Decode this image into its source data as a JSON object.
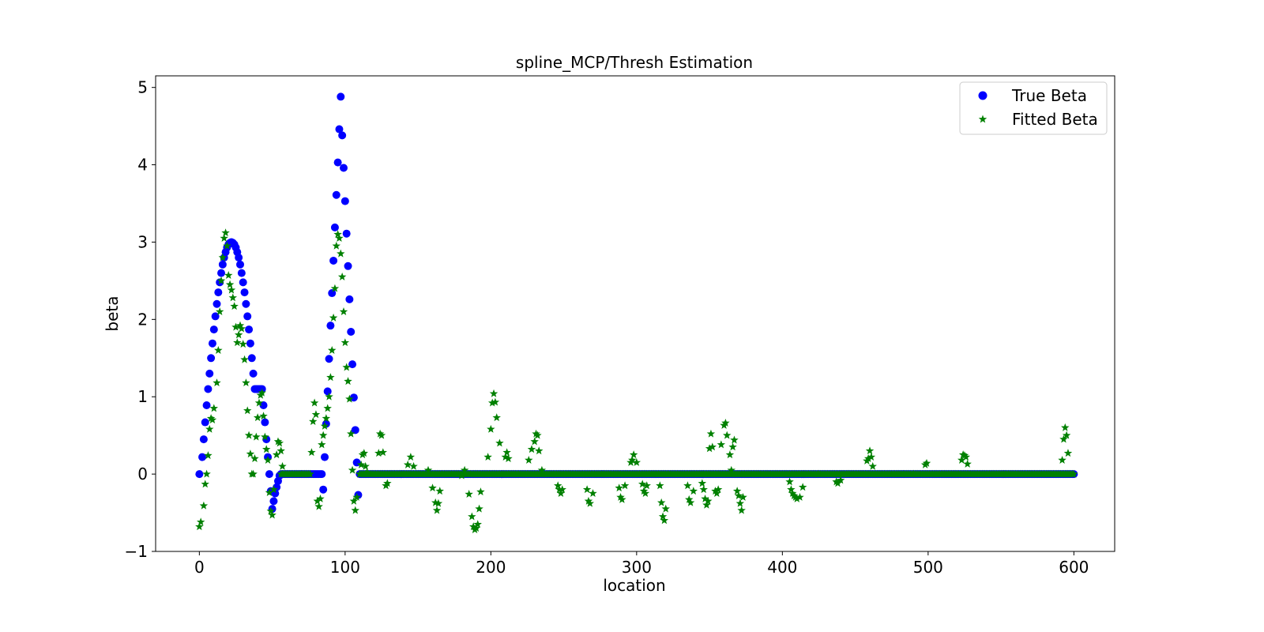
{
  "chart_data": {
    "type": "scatter",
    "title": "spline_MCP/Thresh Estimation",
    "xlabel": "location",
    "ylabel": "beta",
    "xlim": [
      -30,
      628
    ],
    "ylim": [
      -1,
      5.15
    ],
    "xticks": [
      0,
      100,
      200,
      300,
      400,
      500,
      600
    ],
    "yticks": [
      -1,
      0,
      1,
      2,
      3,
      4,
      5
    ],
    "ytick_labels": [
      "−1",
      "0",
      "1",
      "2",
      "3",
      "4",
      "5"
    ],
    "grid": false,
    "legend_position": "top-right",
    "series": [
      {
        "name": "True Beta",
        "marker": "circle",
        "color": "#0000ff",
        "nonzero_points": [
          [
            0,
            0
          ],
          [
            2,
            0.22
          ],
          [
            3,
            0.45
          ],
          [
            4,
            0.67
          ],
          [
            5,
            0.89
          ],
          [
            6,
            1.1
          ],
          [
            7,
            1.3
          ],
          [
            8,
            1.5
          ],
          [
            9,
            1.69
          ],
          [
            10,
            1.87
          ],
          [
            11,
            2.04
          ],
          [
            12,
            2.2
          ],
          [
            13,
            2.35
          ],
          [
            14,
            2.48
          ],
          [
            15,
            2.6
          ],
          [
            16,
            2.71
          ],
          [
            17,
            2.8
          ],
          [
            18,
            2.87
          ],
          [
            19,
            2.93
          ],
          [
            20,
            2.97
          ],
          [
            21,
            2.99
          ],
          [
            22,
            3.0
          ],
          [
            23,
            2.99
          ],
          [
            24,
            2.97
          ],
          [
            25,
            2.93
          ],
          [
            26,
            2.87
          ],
          [
            27,
            2.8
          ],
          [
            28,
            2.71
          ],
          [
            29,
            2.6
          ],
          [
            30,
            2.48
          ],
          [
            31,
            2.35
          ],
          [
            32,
            2.2
          ],
          [
            33,
            2.04
          ],
          [
            34,
            1.87
          ],
          [
            35,
            1.69
          ],
          [
            36,
            1.5
          ],
          [
            37,
            1.3
          ],
          [
            38,
            1.1
          ],
          [
            39,
            1.1
          ],
          [
            40,
            1.1
          ],
          [
            41,
            1.1
          ],
          [
            42,
            1.1
          ],
          [
            43,
            1.1
          ],
          [
            44,
            0.89
          ],
          [
            45,
            0.67
          ],
          [
            46,
            0.45
          ],
          [
            47,
            0.22
          ],
          [
            48,
            0
          ],
          [
            49,
            -0.22
          ],
          [
            50,
            -0.45
          ],
          [
            51,
            -0.35
          ],
          [
            52,
            -0.25
          ],
          [
            53,
            -0.17
          ],
          [
            54,
            -0.09
          ],
          [
            55,
            -0.02
          ],
          [
            85,
            -0.2
          ],
          [
            86,
            0.22
          ],
          [
            87,
            0.65
          ],
          [
            88,
            1.07
          ],
          [
            89,
            1.49
          ],
          [
            90,
            1.92
          ],
          [
            91,
            2.34
          ],
          [
            92,
            2.76
          ],
          [
            93,
            3.19
          ],
          [
            94,
            3.61
          ],
          [
            95,
            4.03
          ],
          [
            96,
            4.46
          ],
          [
            97,
            4.88
          ],
          [
            98,
            4.38
          ],
          [
            99,
            3.96
          ],
          [
            100,
            3.53
          ],
          [
            101,
            3.11
          ],
          [
            102,
            2.69
          ],
          [
            103,
            2.26
          ],
          [
            104,
            1.84
          ],
          [
            105,
            1.42
          ],
          [
            106,
            0.99
          ],
          [
            107,
            0.57
          ],
          [
            108,
            0.15
          ],
          [
            109,
            -0.27
          ]
        ],
        "zero_ranges": [
          [
            56,
            84
          ],
          [
            110,
            600
          ]
        ]
      },
      {
        "name": "Fitted Beta",
        "marker": "star",
        "color": "#008000",
        "nonzero_points": [
          [
            0,
            -0.68
          ],
          [
            1,
            -0.62
          ],
          [
            3,
            -0.41
          ],
          [
            4,
            -0.13
          ],
          [
            5,
            0.0
          ],
          [
            6,
            0.24
          ],
          [
            7,
            0.58
          ],
          [
            8,
            0.72
          ],
          [
            9,
            0.7
          ],
          [
            10,
            0.85
          ],
          [
            12,
            1.18
          ],
          [
            13,
            1.6
          ],
          [
            14,
            2.1
          ],
          [
            15,
            2.5
          ],
          [
            16,
            2.8
          ],
          [
            17,
            3.05
          ],
          [
            18,
            3.12
          ],
          [
            19,
            2.95
          ],
          [
            20,
            2.57
          ],
          [
            21,
            2.45
          ],
          [
            22,
            2.38
          ],
          [
            23,
            2.28
          ],
          [
            24,
            2.17
          ],
          [
            25,
            1.9
          ],
          [
            26,
            1.7
          ],
          [
            27,
            1.8
          ],
          [
            28,
            1.92
          ],
          [
            29,
            1.88
          ],
          [
            30,
            1.68
          ],
          [
            31,
            1.48
          ],
          [
            32,
            1.18
          ],
          [
            33,
            0.82
          ],
          [
            34,
            0.5
          ],
          [
            35,
            0.26
          ],
          [
            36,
            0.0
          ],
          [
            37,
            0.0
          ],
          [
            38,
            0.2
          ],
          [
            39,
            0.48
          ],
          [
            40,
            0.73
          ],
          [
            41,
            0.92
          ],
          [
            42,
            1.02
          ],
          [
            43,
            1.05
          ],
          [
            44,
            0.75
          ],
          [
            45,
            0.48
          ],
          [
            46,
            0.32
          ],
          [
            47,
            0.18
          ],
          [
            48,
            -0.24
          ],
          [
            49,
            -0.48
          ],
          [
            50,
            -0.53
          ],
          [
            51,
            -0.2
          ],
          [
            53,
            0.25
          ],
          [
            54,
            0.42
          ],
          [
            55,
            0.4
          ],
          [
            56,
            0.3
          ],
          [
            57,
            0.1
          ],
          [
            77,
            0.28
          ],
          [
            78,
            0.68
          ],
          [
            79,
            0.92
          ],
          [
            80,
            0.77
          ],
          [
            81,
            -0.35
          ],
          [
            82,
            -0.42
          ],
          [
            83,
            -0.32
          ],
          [
            84,
            0.38
          ],
          [
            85,
            0.5
          ],
          [
            86,
            0.62
          ],
          [
            87,
            0.72
          ],
          [
            88,
            0.85
          ],
          [
            89,
            1.0
          ],
          [
            90,
            1.25
          ],
          [
            91,
            1.6
          ],
          [
            92,
            2.02
          ],
          [
            93,
            2.4
          ],
          [
            94,
            2.95
          ],
          [
            95,
            3.1
          ],
          [
            96,
            3.05
          ],
          [
            97,
            2.85
          ],
          [
            98,
            2.55
          ],
          [
            99,
            2.1
          ],
          [
            100,
            1.7
          ],
          [
            101,
            1.38
          ],
          [
            102,
            1.2
          ],
          [
            103,
            0.97
          ],
          [
            104,
            0.52
          ],
          [
            105,
            0.05
          ],
          [
            106,
            -0.35
          ],
          [
            107,
            -0.47
          ],
          [
            108,
            -0.3
          ],
          [
            110,
            0.0
          ],
          [
            111,
            0.12
          ],
          [
            112,
            0.25
          ],
          [
            113,
            0.27
          ],
          [
            114,
            0.1
          ],
          [
            115,
            0.02
          ],
          [
            123,
            0.27
          ],
          [
            124,
            0.52
          ],
          [
            125,
            0.5
          ],
          [
            126,
            0.28
          ],
          [
            128,
            -0.15
          ],
          [
            129,
            -0.12
          ],
          [
            143,
            0.12
          ],
          [
            145,
            0.22
          ],
          [
            147,
            0.1
          ],
          [
            157,
            0.05
          ],
          [
            160,
            -0.18
          ],
          [
            162,
            -0.37
          ],
          [
            163,
            -0.47
          ],
          [
            164,
            -0.38
          ],
          [
            165,
            -0.22
          ],
          [
            180,
            -0.02
          ],
          [
            182,
            0.05
          ],
          [
            185,
            -0.26
          ],
          [
            187,
            -0.55
          ],
          [
            188,
            -0.68
          ],
          [
            189,
            -0.72
          ],
          [
            190,
            -0.7
          ],
          [
            191,
            -0.65
          ],
          [
            192,
            -0.45
          ],
          [
            193,
            -0.23
          ],
          [
            198,
            0.22
          ],
          [
            200,
            0.58
          ],
          [
            201,
            0.92
          ],
          [
            202,
            1.04
          ],
          [
            203,
            0.93
          ],
          [
            204,
            0.73
          ],
          [
            206,
            0.4
          ],
          [
            210,
            0.22
          ],
          [
            211,
            0.28
          ],
          [
            212,
            0.2
          ],
          [
            226,
            0.18
          ],
          [
            228,
            0.32
          ],
          [
            230,
            0.42
          ],
          [
            231,
            0.52
          ],
          [
            232,
            0.5
          ],
          [
            233,
            0.3
          ],
          [
            235,
            0.05
          ],
          [
            246,
            -0.15
          ],
          [
            247,
            -0.2
          ],
          [
            248,
            -0.25
          ],
          [
            249,
            -0.2
          ],
          [
            266,
            -0.2
          ],
          [
            267,
            -0.35
          ],
          [
            268,
            -0.38
          ],
          [
            270,
            -0.25
          ],
          [
            288,
            -0.18
          ],
          [
            289,
            -0.3
          ],
          [
            290,
            -0.33
          ],
          [
            292,
            -0.15
          ],
          [
            296,
            0.15
          ],
          [
            297,
            0.18
          ],
          [
            298,
            0.25
          ],
          [
            300,
            0.15
          ],
          [
            304,
            -0.13
          ],
          [
            305,
            -0.22
          ],
          [
            306,
            -0.25
          ],
          [
            307,
            -0.15
          ],
          [
            316,
            -0.15
          ],
          [
            317,
            -0.37
          ],
          [
            318,
            -0.55
          ],
          [
            319,
            -0.6
          ],
          [
            320,
            -0.45
          ],
          [
            335,
            -0.15
          ],
          [
            336,
            -0.33
          ],
          [
            337,
            -0.37
          ],
          [
            339,
            -0.22
          ],
          [
            345,
            -0.12
          ],
          [
            346,
            -0.2
          ],
          [
            347,
            -0.32
          ],
          [
            348,
            -0.4
          ],
          [
            349,
            -0.35
          ],
          [
            350,
            0.33
          ],
          [
            351,
            0.52
          ],
          [
            352,
            0.35
          ],
          [
            354,
            -0.22
          ],
          [
            355,
            -0.25
          ],
          [
            356,
            -0.2
          ],
          [
            358,
            0.38
          ],
          [
            360,
            0.63
          ],
          [
            361,
            0.66
          ],
          [
            362,
            0.5
          ],
          [
            364,
            0.25
          ],
          [
            365,
            0.05
          ],
          [
            366,
            0.35
          ],
          [
            367,
            0.44
          ],
          [
            369,
            -0.22
          ],
          [
            370,
            -0.28
          ],
          [
            371,
            -0.38
          ],
          [
            372,
            -0.47
          ],
          [
            373,
            -0.3
          ],
          [
            405,
            -0.1
          ],
          [
            406,
            -0.2
          ],
          [
            407,
            -0.25
          ],
          [
            408,
            -0.28
          ],
          [
            409,
            -0.3
          ],
          [
            410,
            -0.32
          ],
          [
            412,
            -0.3
          ],
          [
            414,
            -0.17
          ],
          [
            425,
            0.0
          ],
          [
            437,
            -0.1
          ],
          [
            438,
            -0.12
          ],
          [
            440,
            -0.08
          ],
          [
            445,
            0.0
          ],
          [
            458,
            0.17
          ],
          [
            459,
            0.2
          ],
          [
            460,
            0.3
          ],
          [
            461,
            0.22
          ],
          [
            462,
            0.1
          ],
          [
            490,
            0.0
          ],
          [
            498,
            0.12
          ],
          [
            499,
            0.14
          ],
          [
            523,
            0.18
          ],
          [
            524,
            0.25
          ],
          [
            525,
            0.24
          ],
          [
            526,
            0.22
          ],
          [
            527,
            0.13
          ],
          [
            592,
            0.18
          ],
          [
            593,
            0.45
          ],
          [
            594,
            0.6
          ],
          [
            595,
            0.5
          ],
          [
            596,
            0.27
          ]
        ],
        "zero_ranges": [
          [
            56,
            76
          ],
          [
            110,
            600
          ]
        ]
      }
    ]
  }
}
